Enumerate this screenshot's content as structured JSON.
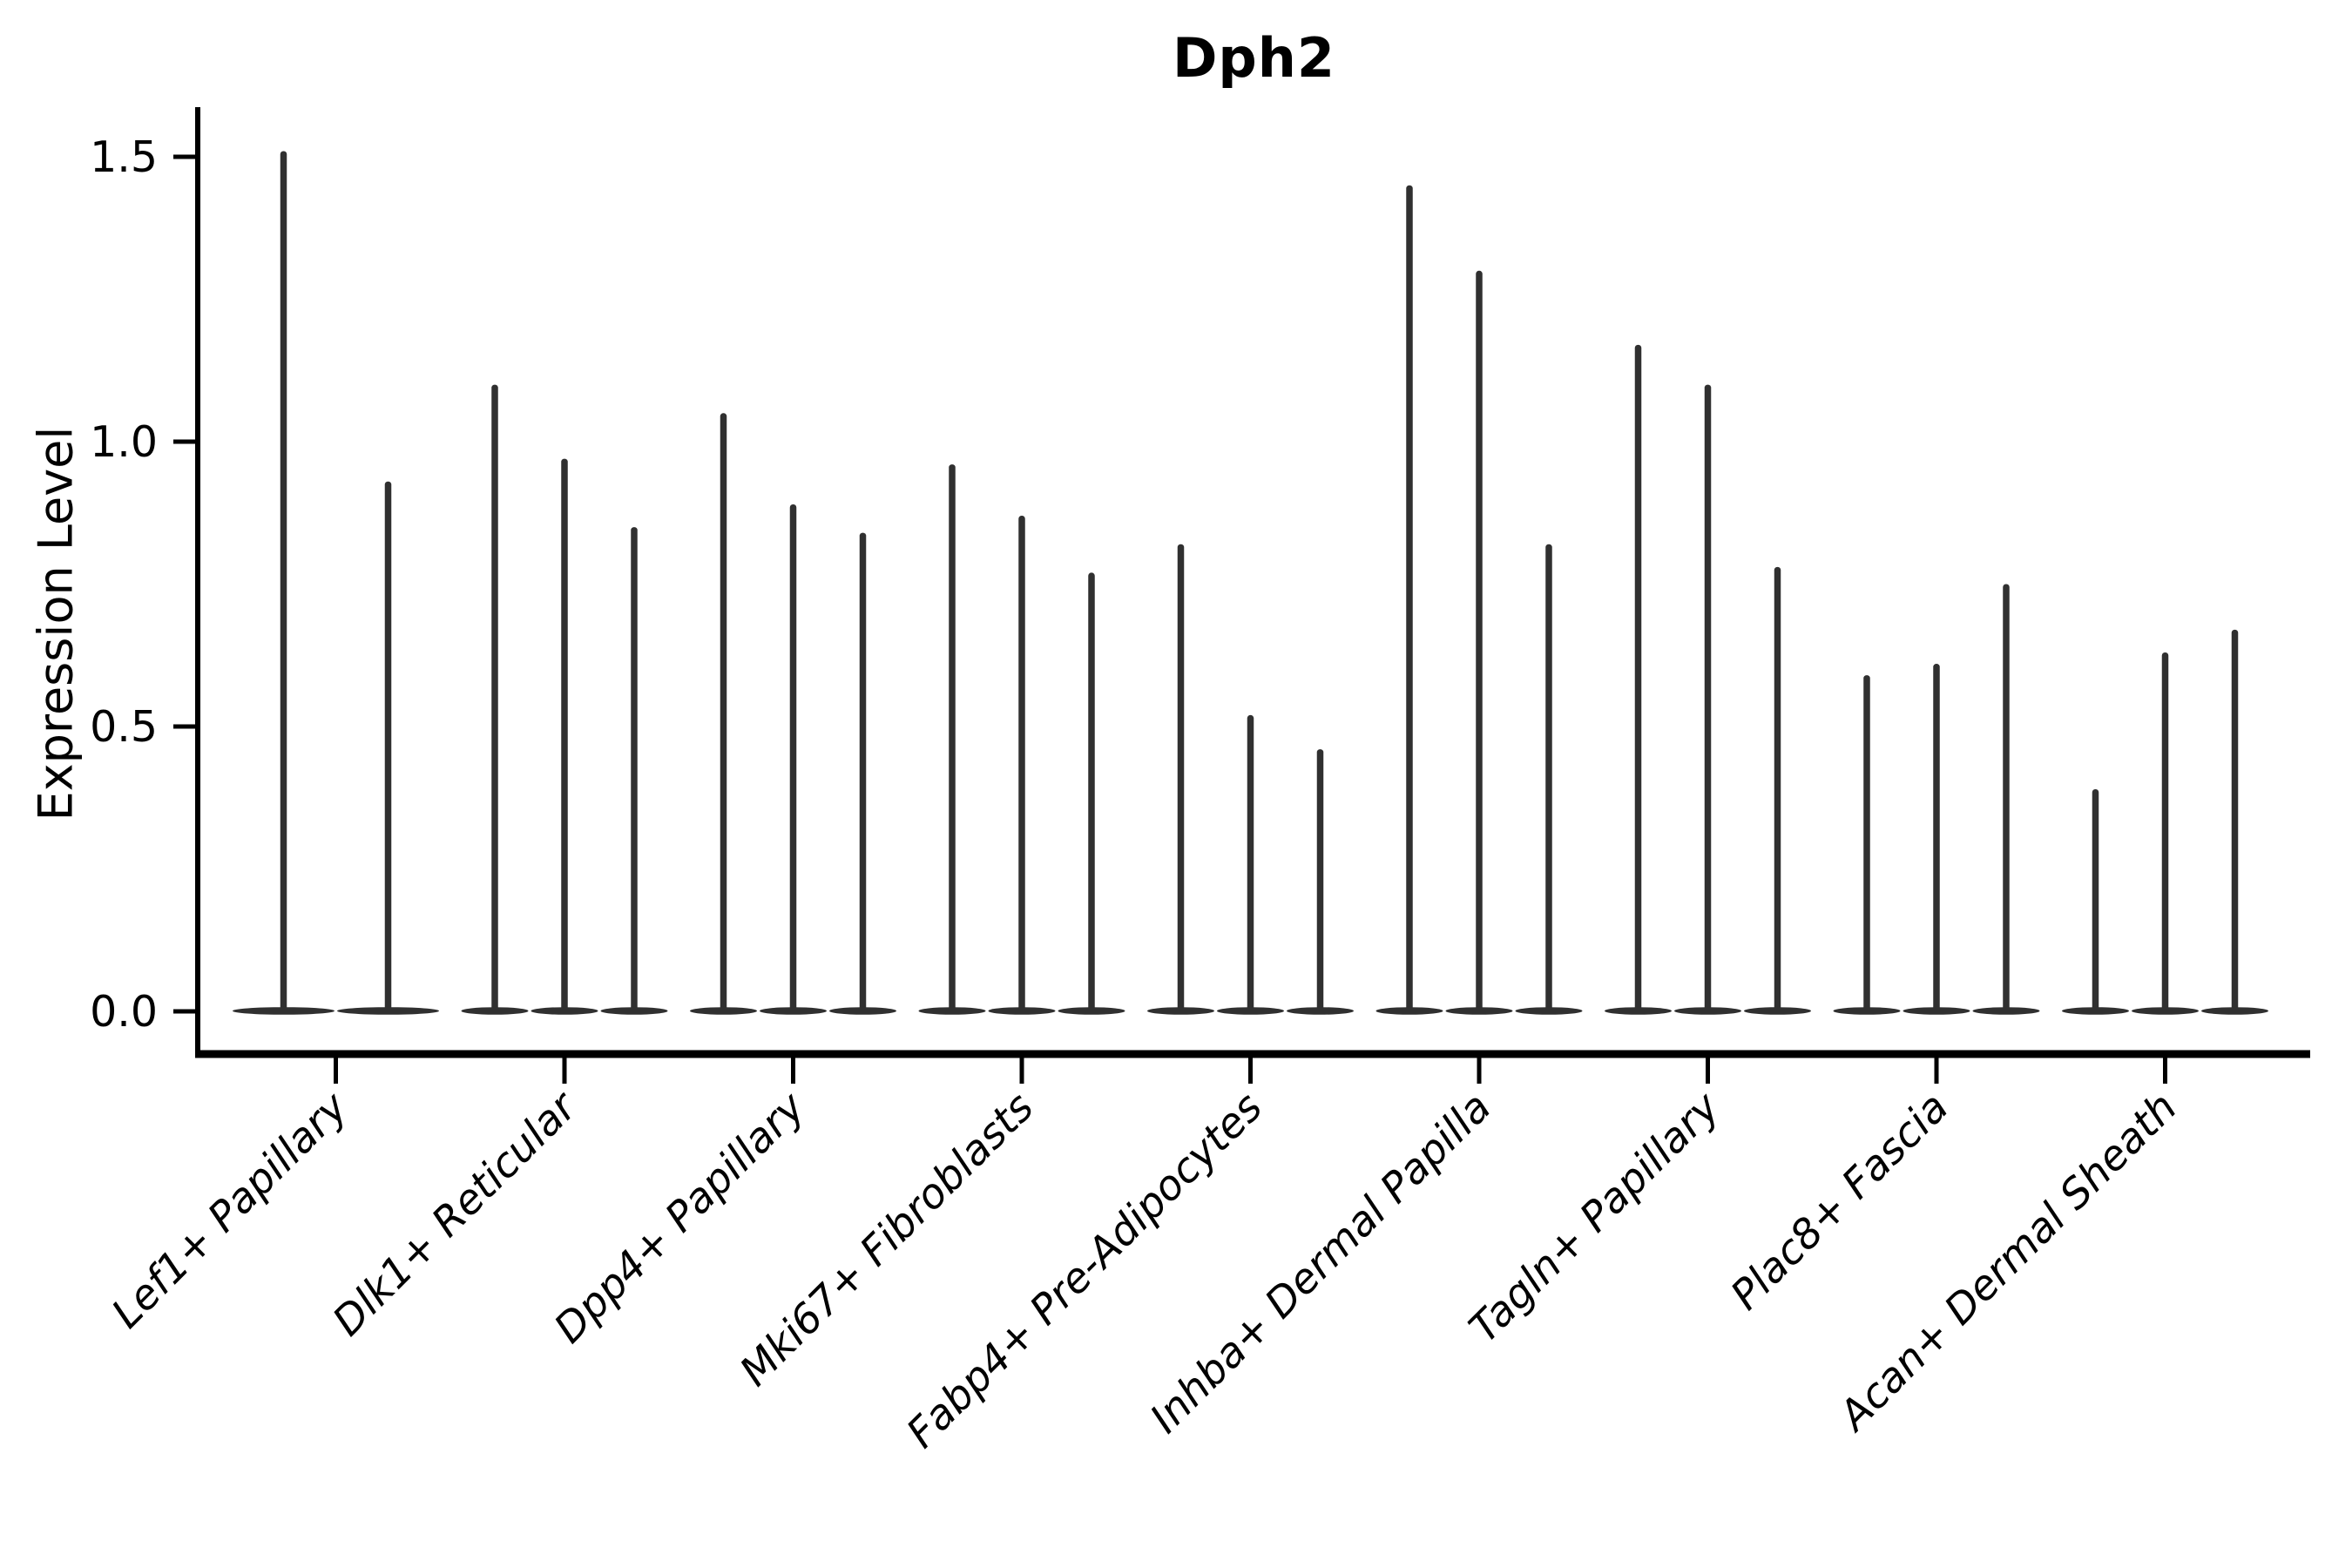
{
  "chart_data": {
    "type": "violin",
    "title": "Dph2",
    "xlabel": "",
    "ylabel": "Expression Level",
    "yticks": [
      {
        "value": 0.0,
        "label": "0.0"
      },
      {
        "value": 0.5,
        "label": "0.5"
      },
      {
        "value": 1.0,
        "label": "1.0"
      },
      {
        "value": 1.5,
        "label": "1.5"
      }
    ],
    "ylim": [
      -0.08,
      1.66
    ],
    "grid": false,
    "legend": "none",
    "axis_color": "#000000",
    "violin_color": "#303030",
    "categories": [
      {
        "label": "Lef1+ Papillary",
        "violin_peaks": [
          1.51,
          0.93
        ]
      },
      {
        "label": "Dlk1+ Reticular",
        "violin_peaks": [
          1.1,
          0.97,
          0.85
        ]
      },
      {
        "label": "Dpp4+ Papillary",
        "violin_peaks": [
          1.05,
          0.89,
          0.84
        ]
      },
      {
        "label": "Mki67+ Fibroblasts",
        "violin_peaks": [
          0.96,
          0.87,
          0.77
        ]
      },
      {
        "label": "Fabp4+ Pre-Adipocytes",
        "violin_peaks": [
          0.82,
          0.52,
          0.46
        ]
      },
      {
        "label": "Inhba+ Dermal Papilla",
        "violin_peaks": [
          1.45,
          1.3,
          0.82
        ]
      },
      {
        "label": "Tagln+ Papillary",
        "violin_peaks": [
          1.17,
          1.1,
          0.78
        ]
      },
      {
        "label": "Plac8+ Fascia",
        "violin_peaks": [
          0.59,
          0.61,
          0.75
        ]
      },
      {
        "label": "Acan+ Dermal Sheath",
        "violin_peaks": [
          0.39,
          0.63,
          0.67
        ]
      }
    ]
  }
}
